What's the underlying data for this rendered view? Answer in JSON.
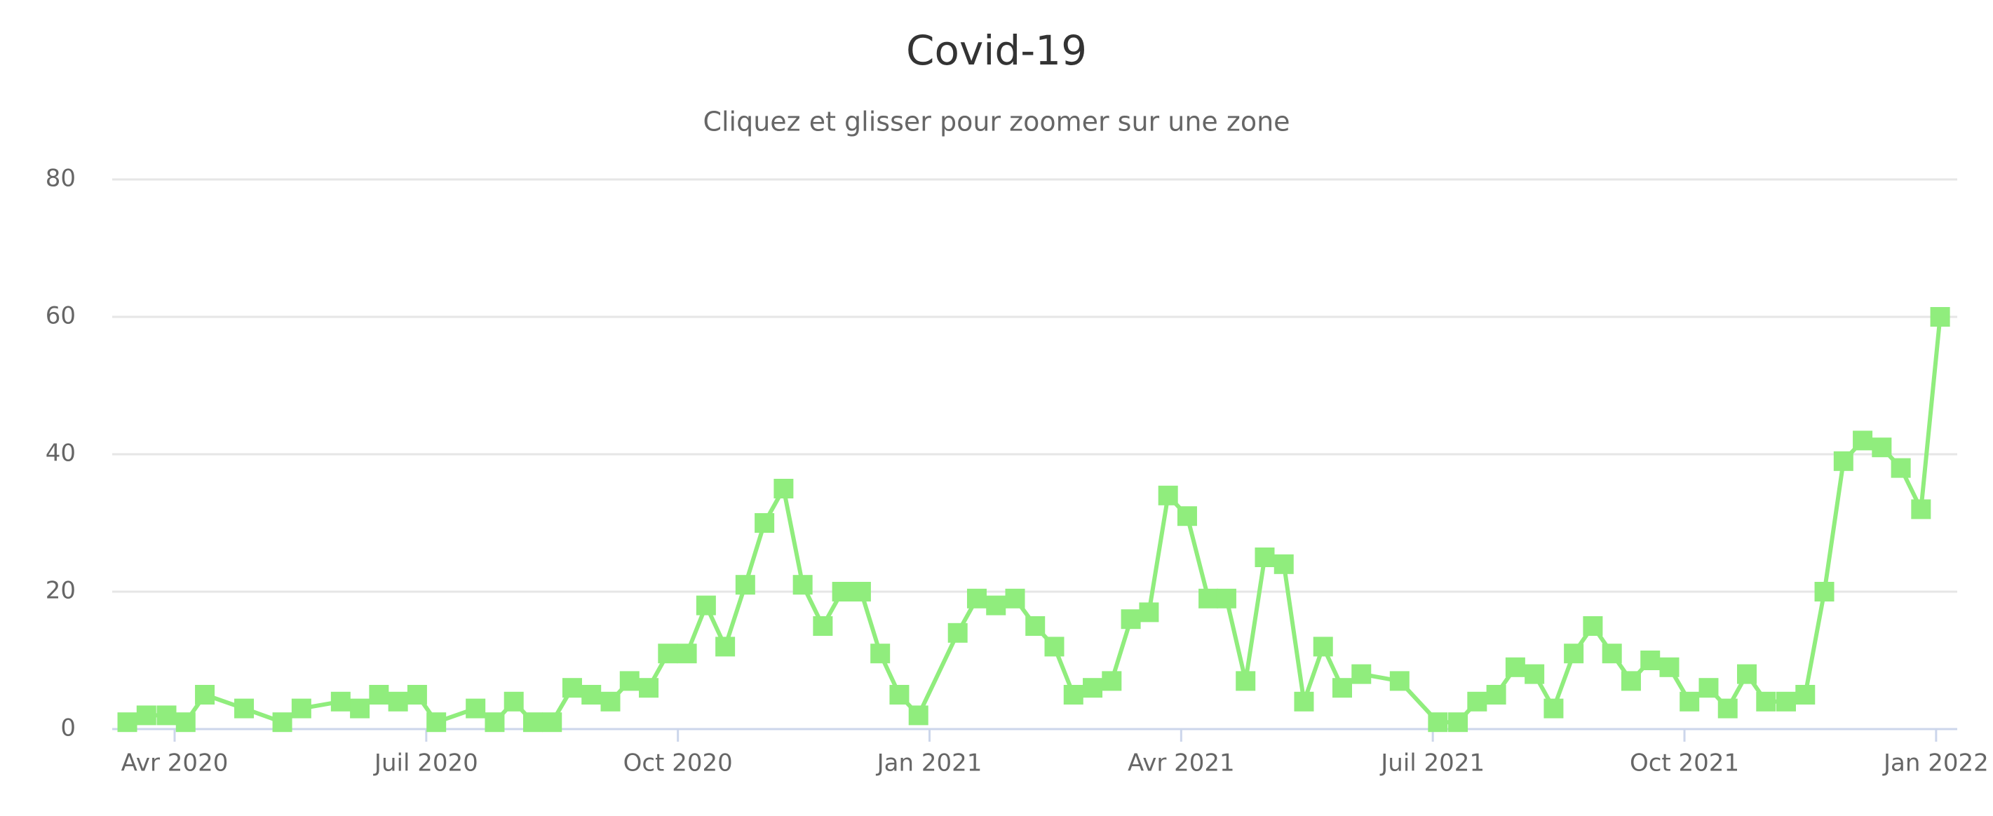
{
  "chart_data": {
    "type": "line",
    "title": "Covid-19",
    "subtitle": "Cliquez et glisser pour zoomer sur une zone",
    "xlim": [
      2020.188,
      2022.021
    ],
    "xticks": [
      {
        "value": 2020.25,
        "label": "Avr 2020"
      },
      {
        "value": 2020.5,
        "label": "Juil 2020"
      },
      {
        "value": 2020.75,
        "label": "Oct 2020"
      },
      {
        "value": 2021.0,
        "label": "Jan 2021"
      },
      {
        "value": 2021.25,
        "label": "Avr 2021"
      },
      {
        "value": 2021.5,
        "label": "Juil 2021"
      },
      {
        "value": 2021.75,
        "label": "Oct 2021"
      },
      {
        "value": 2022.0,
        "label": "Jan 2022"
      }
    ],
    "ylim": [
      0,
      80
    ],
    "yticks": [
      0,
      20,
      40,
      60,
      80
    ],
    "grid": true,
    "x": [
      2020.203,
      2020.222,
      2020.242,
      2020.261,
      2020.28,
      2020.319,
      2020.357,
      2020.376,
      2020.415,
      2020.434,
      2020.453,
      2020.472,
      2020.491,
      2020.51,
      2020.549,
      2020.568,
      2020.587,
      2020.606,
      2020.625,
      2020.645,
      2020.664,
      2020.683,
      2020.702,
      2020.721,
      2020.74,
      2020.759,
      2020.778,
      2020.797,
      2020.817,
      2020.836,
      2020.855,
      2020.874,
      2020.894,
      2020.913,
      2020.932,
      2020.951,
      2020.97,
      2020.989,
      2021.028,
      2021.047,
      2021.066,
      2021.085,
      2021.105,
      2021.124,
      2021.143,
      2021.162,
      2021.181,
      2021.2,
      2021.218,
      2021.237,
      2021.256,
      2021.277,
      2021.295,
      2021.314,
      2021.333,
      2021.352,
      2021.372,
      2021.391,
      2021.41,
      2021.429,
      2021.467,
      2021.505,
      2021.525,
      2021.544,
      2021.563,
      2021.582,
      2021.601,
      2021.62,
      2021.64,
      2021.659,
      2021.678,
      2021.697,
      2021.716,
      2021.735,
      2021.755,
      2021.774,
      2021.793,
      2021.812,
      2021.831,
      2021.851,
      2021.87,
      2021.889,
      2021.908,
      2021.927,
      2021.946,
      2021.965,
      2021.985,
      2022.004
    ],
    "series": [
      {
        "color": "#90ed7d",
        "values": [
          1,
          2,
          2,
          1,
          5,
          3,
          1,
          3,
          4,
          3,
          5,
          4,
          5,
          1,
          3,
          1,
          4,
          1,
          1,
          6,
          5,
          4,
          7,
          6,
          11,
          11,
          18,
          12,
          21,
          30,
          35,
          21,
          15,
          20,
          20,
          11,
          5,
          2,
          14,
          19,
          18,
          19,
          15,
          12,
          5,
          6,
          7,
          16,
          17,
          34,
          31,
          19,
          19,
          7,
          25,
          24,
          4,
          12,
          6,
          8,
          7,
          1,
          1,
          4,
          5,
          9,
          8,
          3,
          11,
          15,
          11,
          7,
          10,
          9,
          4,
          6,
          3,
          8,
          4,
          4,
          5,
          20,
          39,
          42,
          41,
          38,
          32,
          60
        ]
      }
    ]
  }
}
